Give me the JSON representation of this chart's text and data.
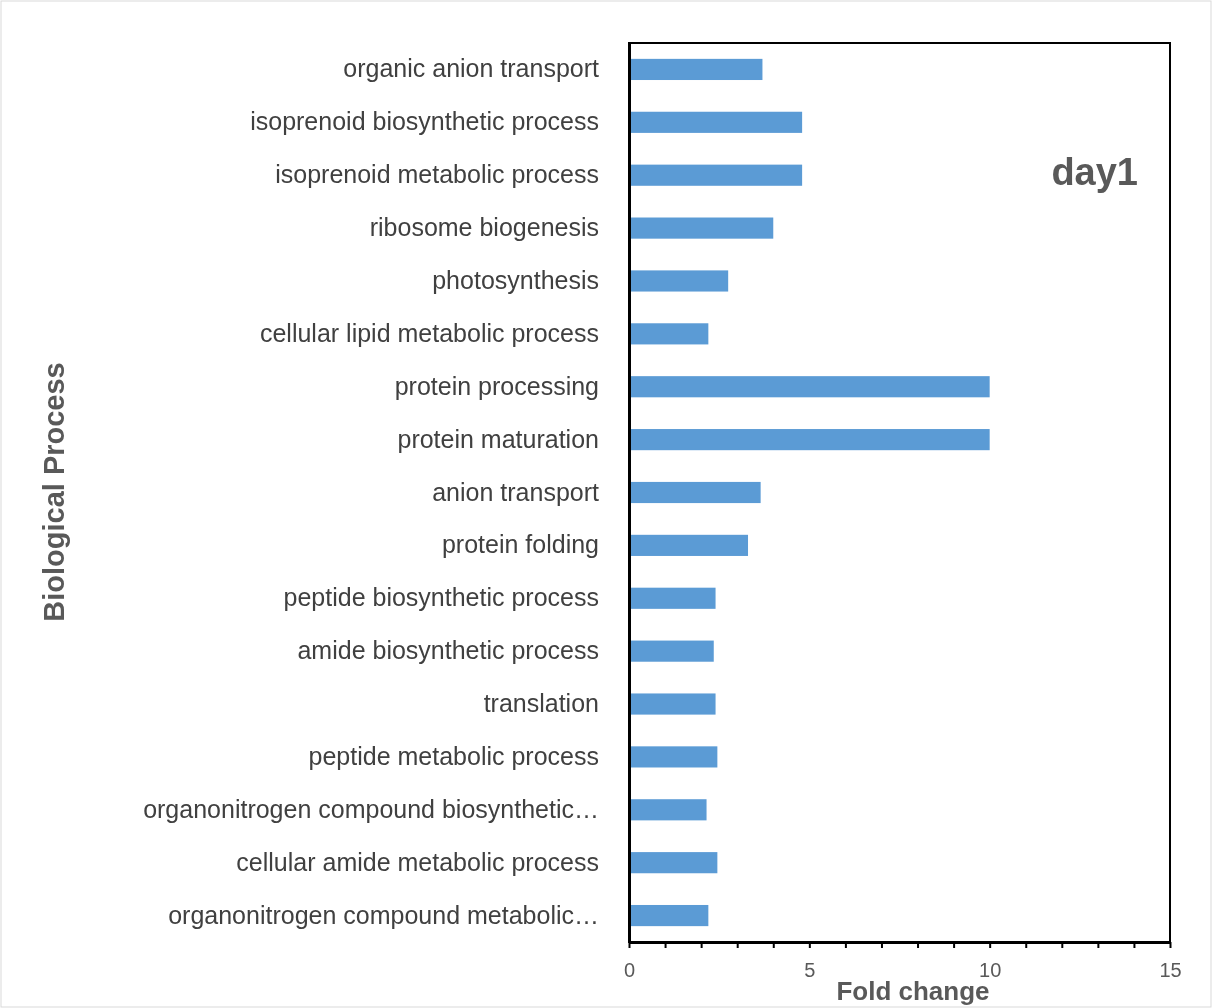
{
  "chart_data": {
    "type": "bar",
    "orientation": "horizontal",
    "title": "day1",
    "xlabel": "Fold change",
    "ylabel": "Biological Process",
    "categories": [
      "organic anion transport",
      "isoprenoid biosynthetic process",
      "isoprenoid metabolic process",
      "ribosome biogenesis",
      "photosynthesis",
      "cellular lipid metabolic process",
      "protein processing",
      "protein maturation",
      "anion transport",
      "protein folding",
      "peptide biosynthetic process",
      "amide biosynthetic process",
      "translation",
      "peptide metabolic process",
      "organonitrogen compound biosynthetic…",
      "cellular amide metabolic process",
      "organonitrogen compound metabolic…"
    ],
    "values": [
      3.7,
      4.8,
      4.8,
      4.0,
      2.75,
      2.2,
      10.0,
      10.0,
      3.65,
      3.3,
      2.4,
      2.35,
      2.4,
      2.45,
      2.15,
      2.45,
      2.2
    ],
    "color": "#5b9bd5",
    "xlim": [
      0,
      15
    ],
    "xticks": [
      0,
      {
        "value": 1,
        "label": null
      },
      {
        "value": 2,
        "label": null
      },
      {
        "value": 3,
        "label": null
      },
      {
        "value": 4,
        "label": null
      },
      5,
      {
        "value": 6,
        "label": null
      },
      {
        "value": 7,
        "label": null
      },
      {
        "value": 8,
        "label": null
      },
      {
        "value": 9,
        "label": null
      },
      10,
      {
        "value": 11,
        "label": null
      },
      {
        "value": 12,
        "label": null
      },
      {
        "value": 13,
        "label": null
      },
      {
        "value": 14,
        "label": null
      },
      15
    ],
    "grid": false
  }
}
